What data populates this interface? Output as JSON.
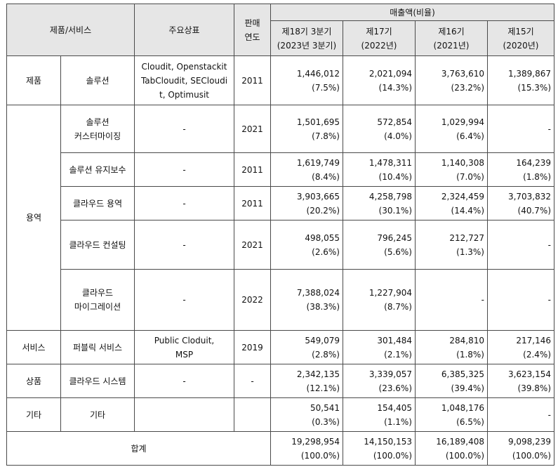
{
  "header": {
    "product_service": "제품/서비스",
    "brand": "주요상표",
    "year": "판매\n연도",
    "sales": "매출액(비율)",
    "periods": [
      {
        "line1": "제18기 3분기",
        "line2": "(2023년 3분기)"
      },
      {
        "line1": "제17기",
        "line2": "(2022년)"
      },
      {
        "line1": "제16기",
        "line2": "(2021년)"
      },
      {
        "line1": "제15기",
        "line2": "(2020년)"
      }
    ]
  },
  "rows": [
    {
      "category": "제품",
      "name": "솔루션",
      "brand": "Cloudit, Openstackit\nTabCloudit, SECloudi\nt, Optimusit",
      "year": "2011",
      "values": [
        [
          "1,446,012",
          "(7.5%)"
        ],
        [
          "2,021,094",
          "(14.3%)"
        ],
        [
          "3,763,610",
          "(23.2%)"
        ],
        [
          "1,389,867",
          "(15.3%)"
        ]
      ]
    },
    {
      "category": "용역",
      "name": "솔루션\n커스터마이징",
      "brand": "-",
      "year": "2021",
      "values": [
        [
          "1,501,695",
          "(7.8%)"
        ],
        [
          "572,854",
          "(4.0%)"
        ],
        [
          "1,029,994",
          "(6.4%)"
        ],
        [
          "-",
          ""
        ]
      ]
    },
    {
      "name": "솔루션 유지보수",
      "brand": "-",
      "year": "2011",
      "values": [
        [
          "1,619,749",
          "(8.4%)"
        ],
        [
          "1,478,311",
          "(10.4%)"
        ],
        [
          "1,140,308",
          "(7.0%)"
        ],
        [
          "164,239",
          "(1.8%)"
        ]
      ]
    },
    {
      "name": "클라우드 용역",
      "brand": "-",
      "year": "2011",
      "values": [
        [
          "3,903,665",
          "(20.2%)"
        ],
        [
          "4,258,798",
          "(30.1%)"
        ],
        [
          "2,324,459",
          "(14.4%)"
        ],
        [
          "3,703,832",
          "(40.7%)"
        ]
      ]
    },
    {
      "name": "클라우드 컨설팅",
      "brand": "-",
      "year": "2021",
      "values": [
        [
          "498,055",
          "(2.6%)"
        ],
        [
          "796,245",
          "(5.6%)"
        ],
        [
          "212,727",
          "(1.3%)"
        ],
        [
          "-",
          ""
        ]
      ]
    },
    {
      "name": "클라우드\n마이그레이션",
      "brand": "-",
      "year": "2022",
      "values": [
        [
          "7,388,024",
          "(38.3%)"
        ],
        [
          "1,227,904",
          "(8.7%)"
        ],
        [
          "-",
          ""
        ],
        [
          "-",
          ""
        ]
      ]
    },
    {
      "category": "서비스",
      "name": "퍼블릭 서비스",
      "brand": "Public Cloduit,\nMSP",
      "year": "2019",
      "values": [
        [
          "549,079",
          "(2.8%)"
        ],
        [
          "301,484",
          "(2.1%)"
        ],
        [
          "284,810",
          "(1.8%)"
        ],
        [
          "217,146",
          "(2.4%)"
        ]
      ]
    },
    {
      "category": "상품",
      "name": "클라우드 시스템",
      "brand": "-",
      "year": "-",
      "values": [
        [
          "2,342,135",
          "(12.1%)"
        ],
        [
          "3,339,057",
          "(23.6%)"
        ],
        [
          "6,385,325",
          "(39.4%)"
        ],
        [
          "3,623,154",
          "(39.8%)"
        ]
      ]
    },
    {
      "category": "기타",
      "name": "기타",
      "brand": "",
      "year": "",
      "values": [
        [
          "50,541",
          "(0.3%)"
        ],
        [
          "154,405",
          "(1.1%)"
        ],
        [
          "1,048,176",
          "(6.5%)"
        ],
        [
          "-",
          ""
        ]
      ]
    }
  ],
  "total": {
    "label": "합계",
    "values": [
      [
        "19,298,954",
        "(100.0%)"
      ],
      [
        "14,150,153",
        "(100.0%)"
      ],
      [
        "16,189,408",
        "(100.0%)"
      ],
      [
        "9,098,239",
        "(100.0%)"
      ]
    ]
  }
}
